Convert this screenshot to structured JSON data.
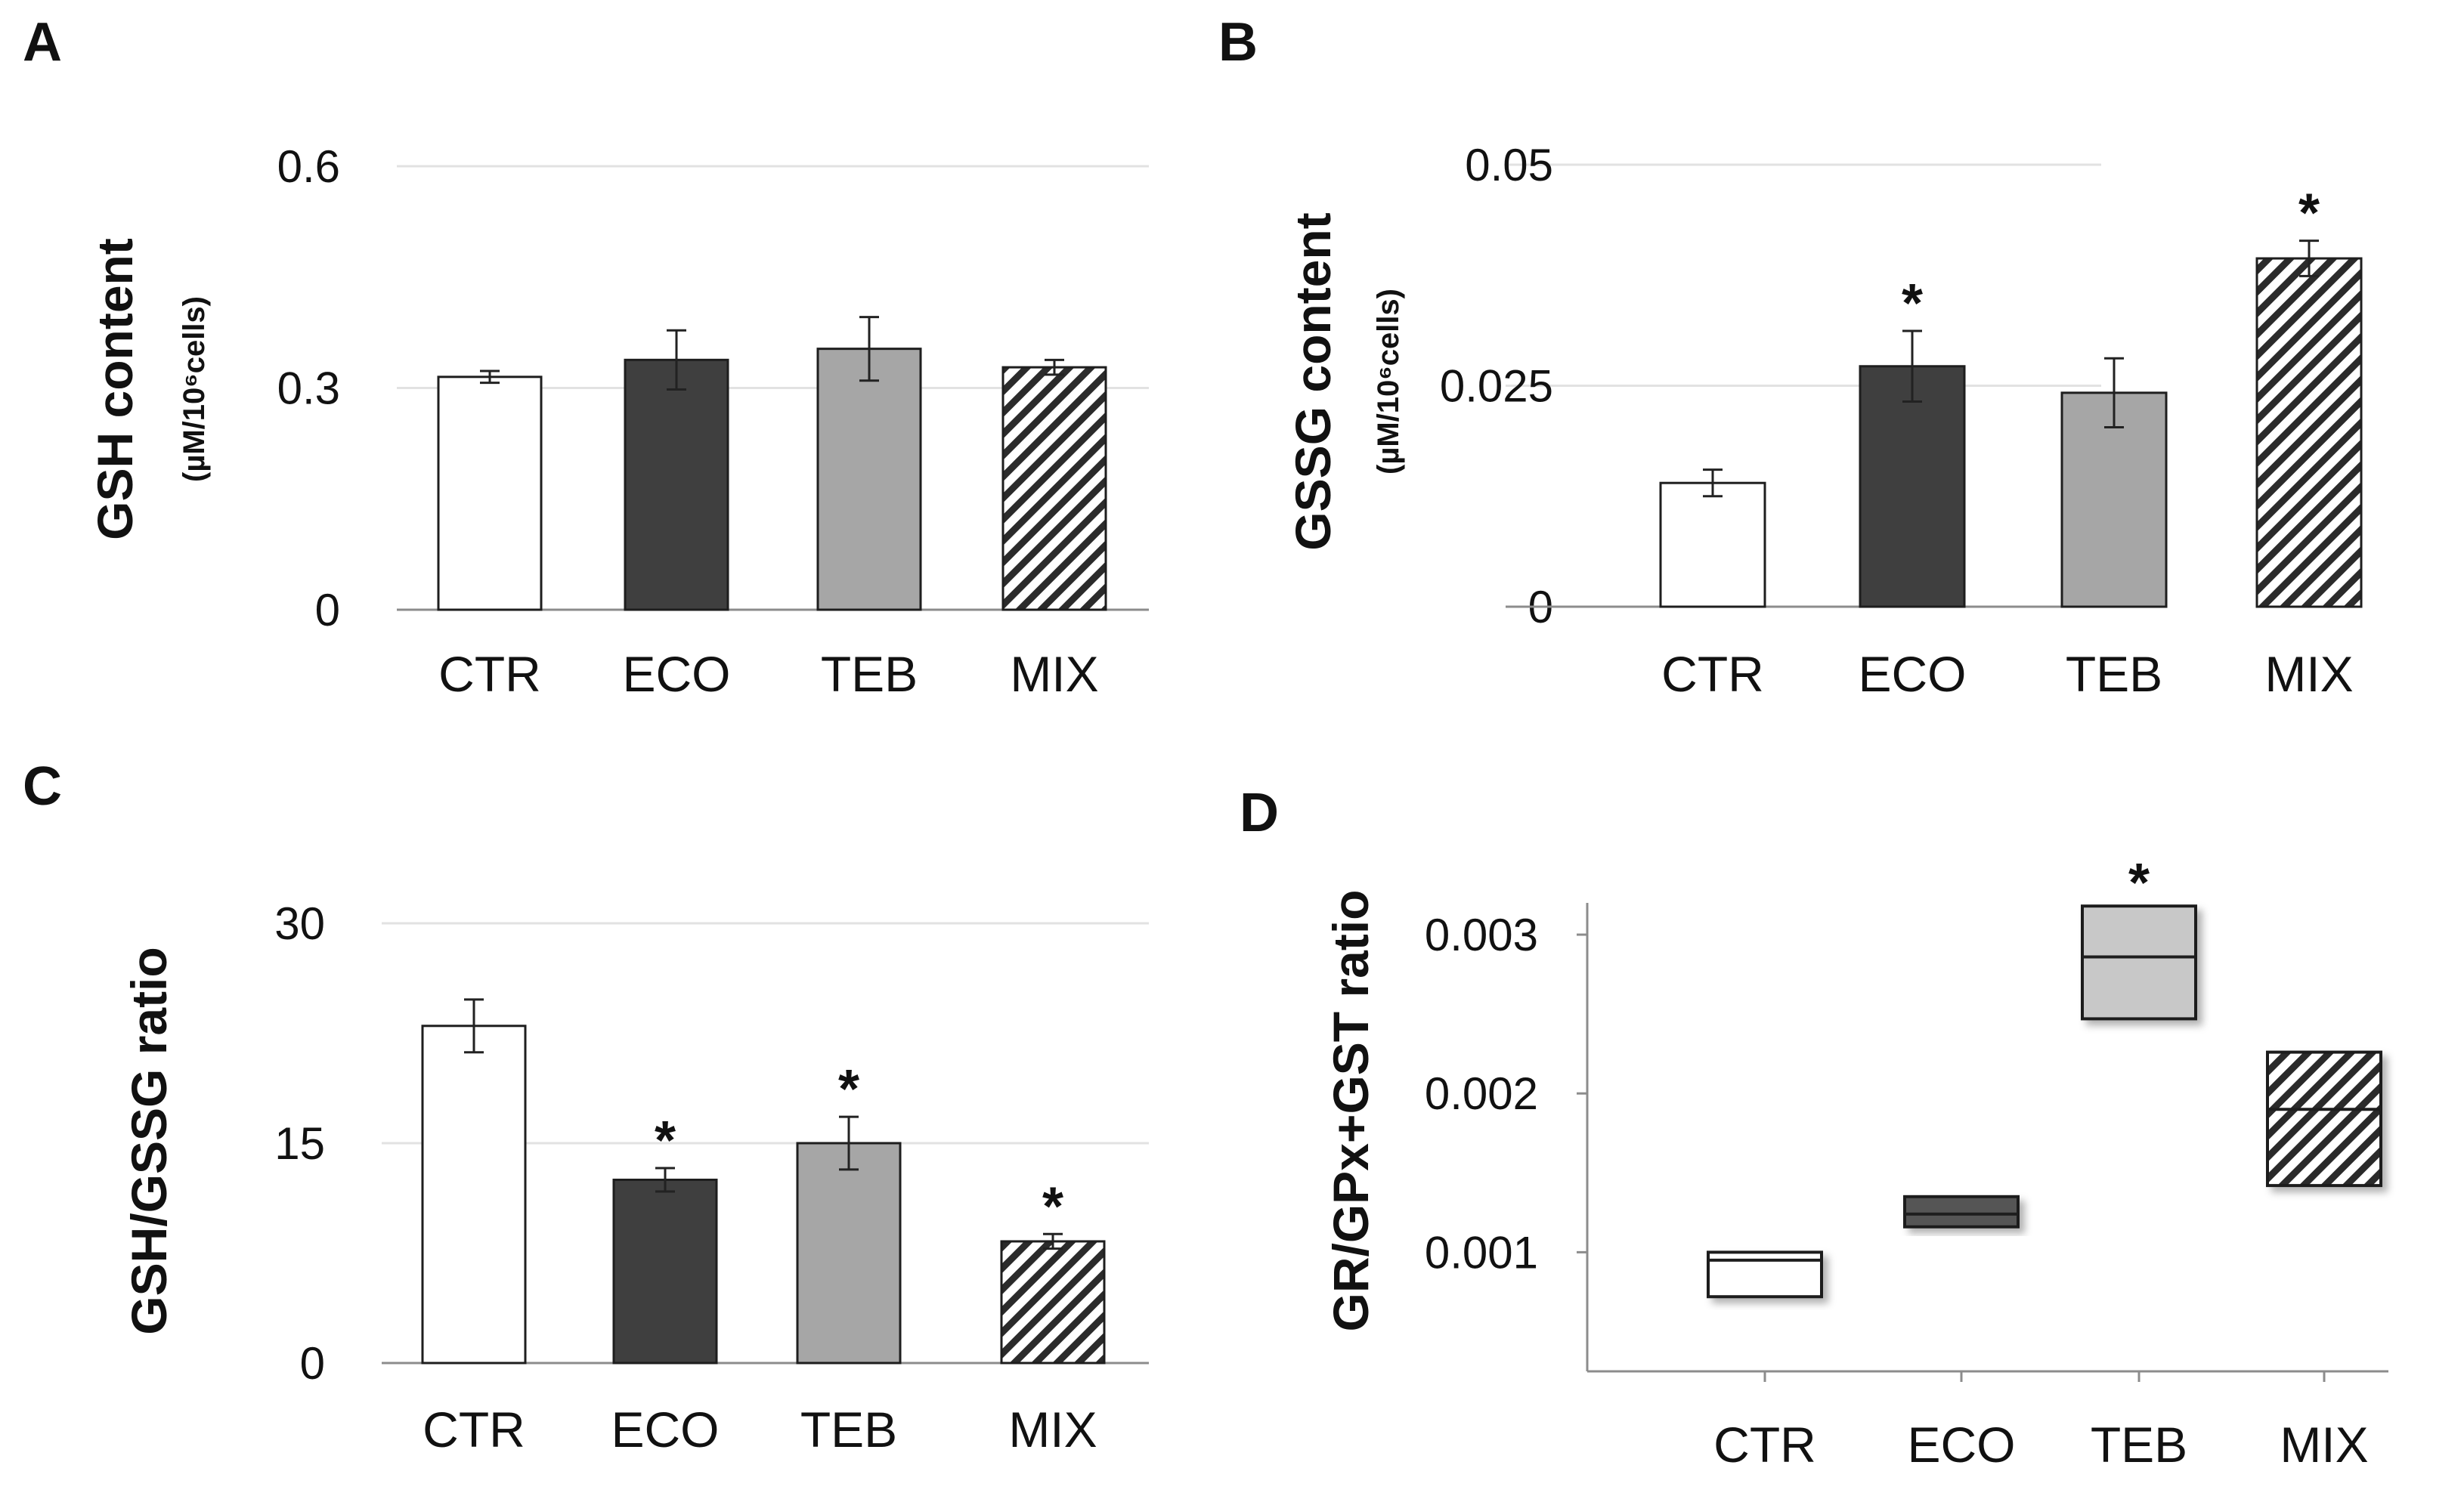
{
  "colors": {
    "CTR": "#ffffff",
    "ECO": "#3f3f3f",
    "TEB": "#a6a6a6",
    "TEB_box": "#c8c8c8",
    "MIX_hatch": "#2b2b2b",
    "ECO_box": "#555555",
    "grid": "#e2e2e2",
    "axis": "#8c8c8c"
  },
  "chart_data": [
    {
      "panel": "A",
      "type": "bar",
      "title": "",
      "ylabel": "GSH content",
      "ylabel_unit": "(µM/10⁶cells)",
      "ylim": [
        0,
        0.6
      ],
      "yticks": [
        "0",
        "0.3",
        "0.6"
      ],
      "ytick_values": [
        0,
        0.3,
        0.6
      ],
      "categories": [
        "CTR",
        "ECO",
        "TEB",
        "MIX"
      ],
      "values": [
        0.315,
        0.338,
        0.353,
        0.328
      ],
      "errors": [
        0.008,
        0.04,
        0.043,
        0.01
      ],
      "significant": [
        "",
        "",
        "",
        ""
      ],
      "grid": true
    },
    {
      "panel": "B",
      "type": "bar",
      "title": "",
      "ylabel": "GSSG content",
      "ylabel_unit": "(µM/10⁶cells)",
      "ylim": [
        0,
        0.05
      ],
      "yticks": [
        "0",
        "0.025",
        "0.05"
      ],
      "ytick_values": [
        0,
        0.025,
        0.05
      ],
      "categories": [
        "CTR",
        "ECO",
        "TEB",
        "MIX"
      ],
      "values": [
        0.014,
        0.0272,
        0.0242,
        0.0394
      ],
      "errors": [
        0.0015,
        0.004,
        0.0039,
        0.002
      ],
      "significant": [
        "",
        "*",
        "",
        "*"
      ],
      "grid": true
    },
    {
      "panel": "C",
      "type": "bar",
      "title": "",
      "ylabel": "GSH/GSSG ratio",
      "ylim": [
        0,
        30
      ],
      "yticks": [
        "0",
        "15",
        "30"
      ],
      "ytick_values": [
        0,
        15,
        30
      ],
      "categories": [
        "CTR",
        "ECO",
        "TEB",
        "MIX"
      ],
      "values": [
        23.0,
        12.5,
        15.0,
        8.3
      ],
      "errors": [
        1.8,
        0.8,
        1.8,
        0.5
      ],
      "significant": [
        "",
        "*",
        "*",
        "*"
      ],
      "grid": true
    },
    {
      "panel": "D",
      "type": "box",
      "title": "",
      "ylabel": "GR/GPx+GST ratio",
      "ylim": [
        0.00025,
        0.0032
      ],
      "yticks": [
        "0.001",
        "0.002",
        "0.003"
      ],
      "ytick_values": [
        0.001,
        0.002,
        0.003
      ],
      "categories": [
        "CTR",
        "ECO",
        "TEB",
        "MIX"
      ],
      "q1": [
        0.00072,
        0.00116,
        0.00247,
        0.00142
      ],
      "median": [
        0.00095,
        0.00124,
        0.00286,
        0.0019
      ],
      "q3": [
        0.001,
        0.00135,
        0.00318,
        0.00226
      ],
      "significant": [
        "",
        "",
        "*",
        ""
      ],
      "grid": false
    }
  ]
}
